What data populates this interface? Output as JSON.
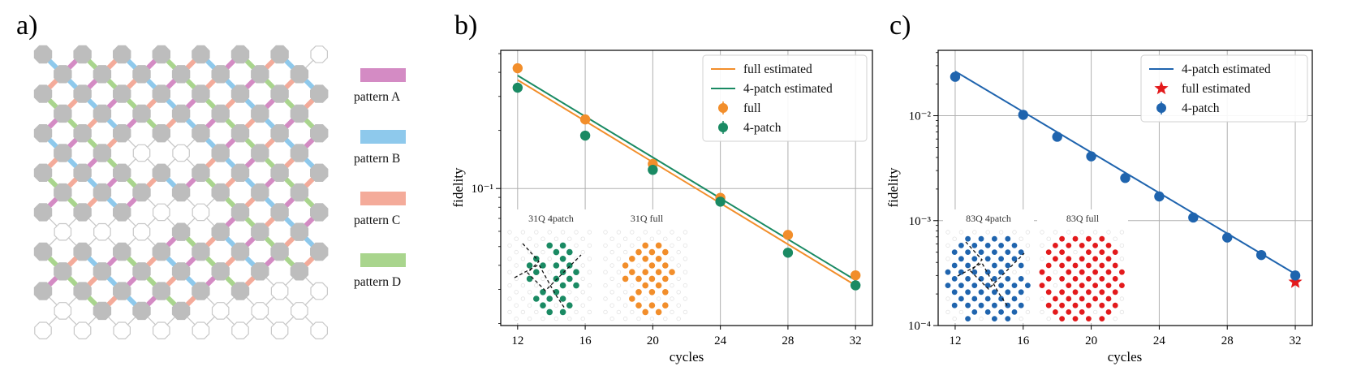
{
  "panel_labels": {
    "a": "a)",
    "b": "b)",
    "c": "c)"
  },
  "colors": {
    "pattern_A": "#d48bc4",
    "pattern_B": "#8ec9ec",
    "pattern_C": "#f4ab9a",
    "pattern_D": "#a9d58d",
    "qubit": "#bdbdbd",
    "outline": "#c8c8c8",
    "full_orange": "#f28e2b",
    "patch_green": "#1a8a63",
    "patch_blue": "#1f64ae",
    "star_red": "#e31a1c"
  },
  "patterns": [
    {
      "key": "pattern_A",
      "label": "pattern A"
    },
    {
      "key": "pattern_B",
      "label": "pattern B"
    },
    {
      "key": "pattern_C",
      "label": "pattern C"
    },
    {
      "key": "pattern_D",
      "label": "pattern D"
    }
  ],
  "chart_data": [
    {
      "panel": "b",
      "type": "scatter",
      "title": "",
      "xlabel": "cycles",
      "ylabel": "fidelity",
      "xlim": [
        11,
        33
      ],
      "ylim": [
        0.0195,
        0.52
      ],
      "yscale": "log",
      "grid": true,
      "xticks": [
        12,
        16,
        20,
        24,
        28,
        32
      ],
      "xtick_labels": [
        "12",
        "16",
        "20",
        "24",
        "28",
        "32"
      ],
      "yticks": [
        0.1
      ],
      "ytick_labels": [
        "10⁻¹"
      ],
      "legend_position": "top-right",
      "series": [
        {
          "name": "full estimated",
          "kind": "line",
          "color": "#f28e2b",
          "x": [
            12,
            32
          ],
          "y": [
            0.365,
            0.0315
          ]
        },
        {
          "name": "4-patch estimated",
          "kind": "line",
          "color": "#1a8a63",
          "x": [
            12,
            32
          ],
          "y": [
            0.385,
            0.0335
          ]
        },
        {
          "name": "full",
          "kind": "points",
          "color": "#f28e2b",
          "x": [
            12,
            16,
            20,
            24,
            28,
            32
          ],
          "y": [
            0.42,
            0.228,
            0.134,
            0.0895,
            0.0575,
            0.0355
          ]
        },
        {
          "name": "4-patch",
          "kind": "points",
          "color": "#1a8a63",
          "x": [
            12,
            16,
            20,
            24,
            28,
            32
          ],
          "y": [
            0.333,
            0.188,
            0.125,
            0.0855,
            0.0465,
            0.0315
          ]
        }
      ],
      "insets": [
        {
          "label": "31Q 4patch",
          "color": "#1a8a63"
        },
        {
          "label": "31Q full",
          "color": "#f28e2b"
        }
      ]
    },
    {
      "panel": "c",
      "type": "scatter",
      "title": "",
      "xlabel": "cycles",
      "ylabel": "fidelity",
      "xlim": [
        11,
        33
      ],
      "ylim": [
        0.0001,
        0.042
      ],
      "yscale": "log",
      "grid": true,
      "xticks": [
        12,
        16,
        20,
        24,
        28,
        32
      ],
      "xtick_labels": [
        "12",
        "16",
        "20",
        "24",
        "28",
        "32"
      ],
      "yticks": [
        0.0001,
        0.001,
        0.01
      ],
      "ytick_labels": [
        "10⁻⁴",
        "10⁻³",
        "10⁻²"
      ],
      "legend_position": "top-right",
      "series": [
        {
          "name": "4-patch estimated",
          "kind": "line",
          "color": "#1f64ae",
          "x": [
            12,
            32
          ],
          "y": [
            0.0265,
            0.00031
          ]
        },
        {
          "name": "full estimated",
          "kind": "star",
          "color": "#e31a1c",
          "x": [
            32
          ],
          "y": [
            0.00026
          ]
        },
        {
          "name": "4-patch",
          "kind": "points",
          "color": "#1f64ae",
          "x": [
            12,
            16,
            18,
            20,
            22,
            24,
            26,
            28,
            30,
            32
          ],
          "y": [
            0.0235,
            0.0102,
            0.0063,
            0.0041,
            0.00255,
            0.0017,
            0.00107,
            0.00069,
            0.00047,
            0.0003
          ]
        }
      ],
      "insets": [
        {
          "label": "83Q 4patch",
          "color": "#1f64ae"
        },
        {
          "label": "83Q full",
          "color": "#e31a1c"
        }
      ]
    }
  ]
}
